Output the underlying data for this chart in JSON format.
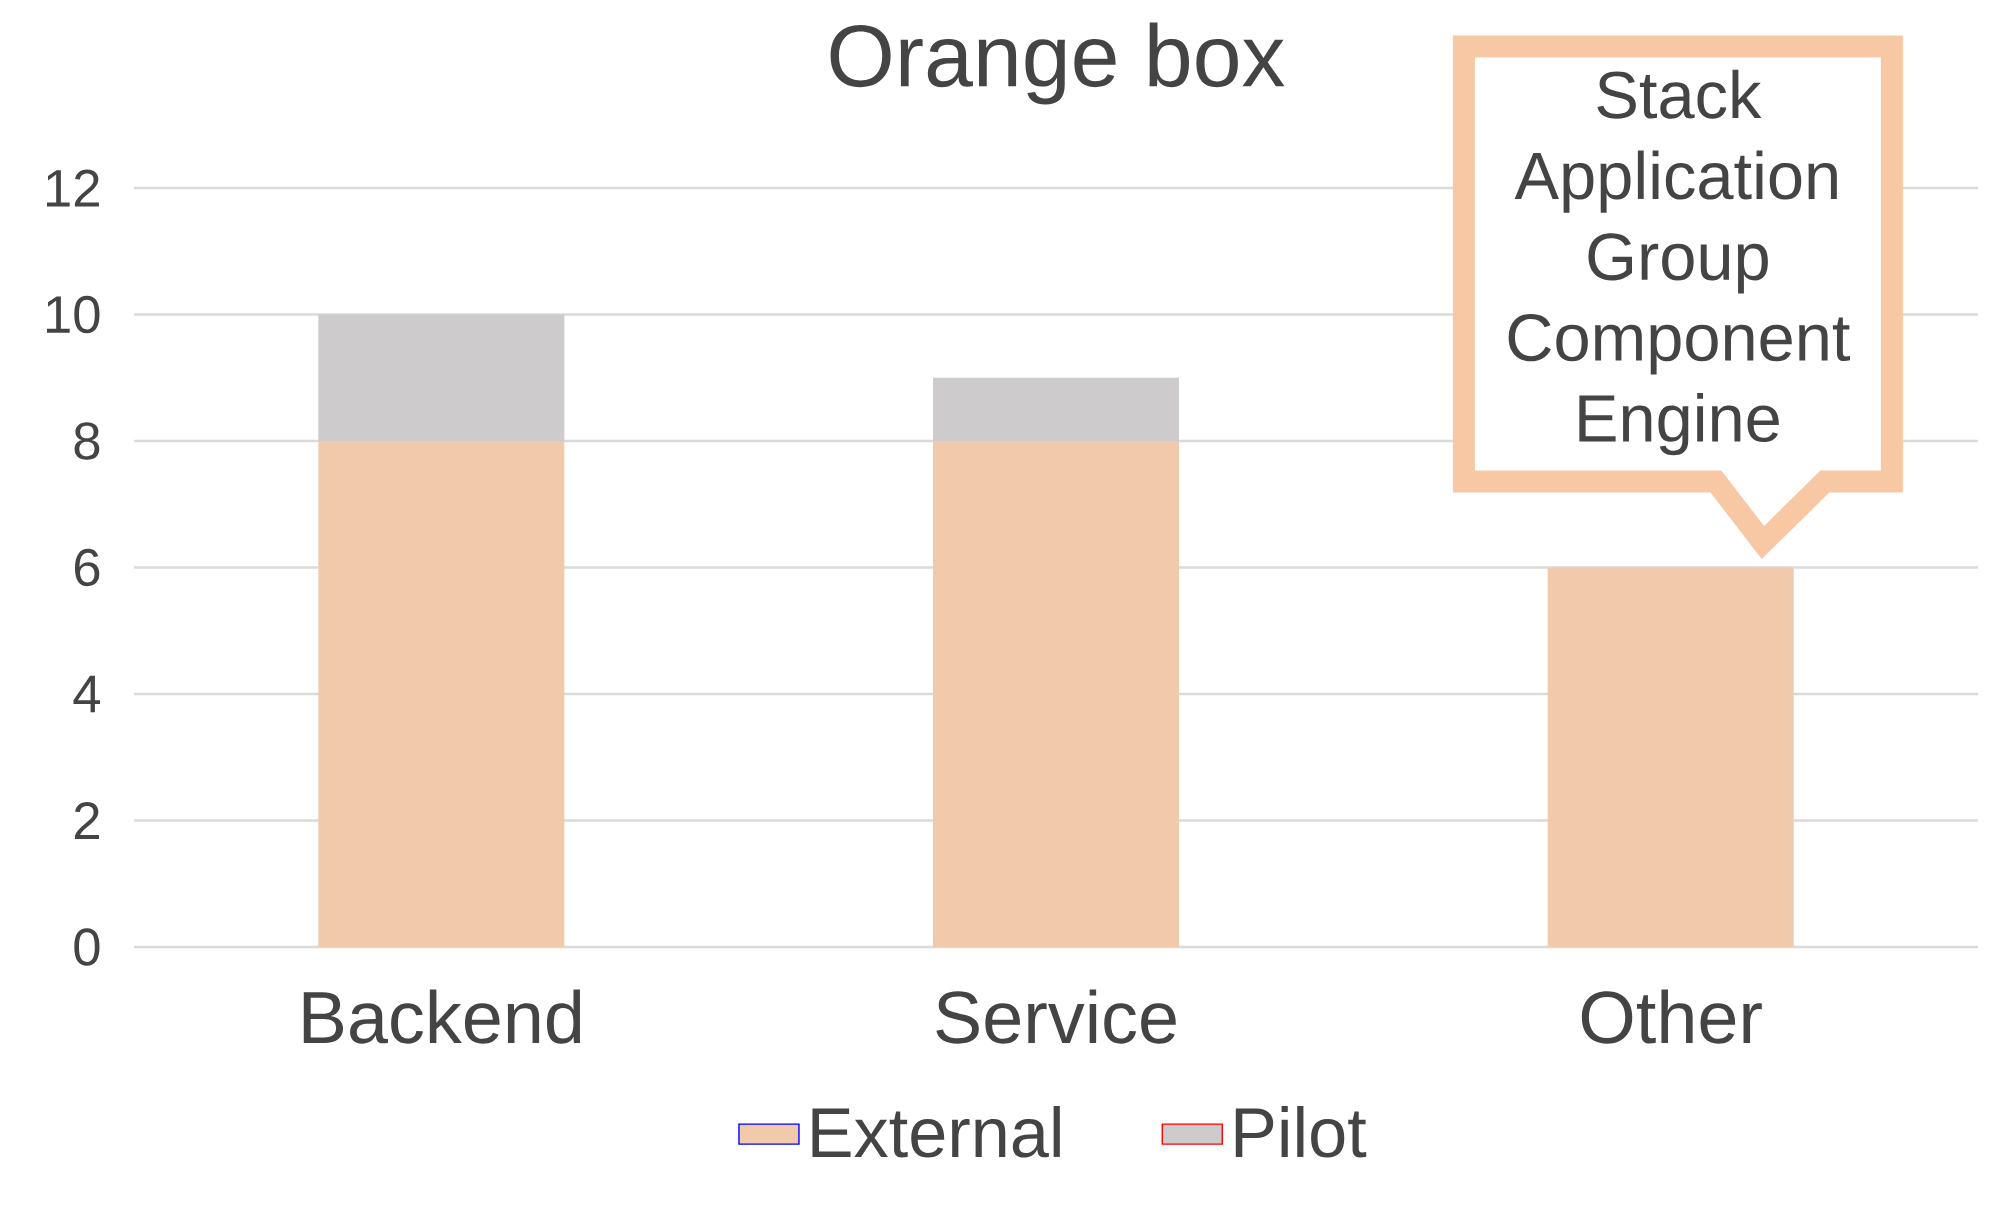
{
  "chart_data": {
    "type": "bar",
    "title": "Orange box",
    "stacked": true,
    "categories": [
      "Backend",
      "Service",
      "Other"
    ],
    "series": [
      {
        "name": "External",
        "color": "#f0caab",
        "values": [
          8,
          8,
          6
        ]
      },
      {
        "name": "Pilot",
        "color": "#cdcbcc",
        "values": [
          2,
          1,
          0
        ]
      }
    ],
    "ylim": [
      0,
      12
    ],
    "yticks": [
      0,
      2,
      4,
      6,
      8,
      10,
      12
    ],
    "grid": "y",
    "legend": "bottom",
    "annotations": [
      {
        "text": "Stack Application Group Component Engine",
        "x": "Other",
        "y": 6
      }
    ]
  }
}
